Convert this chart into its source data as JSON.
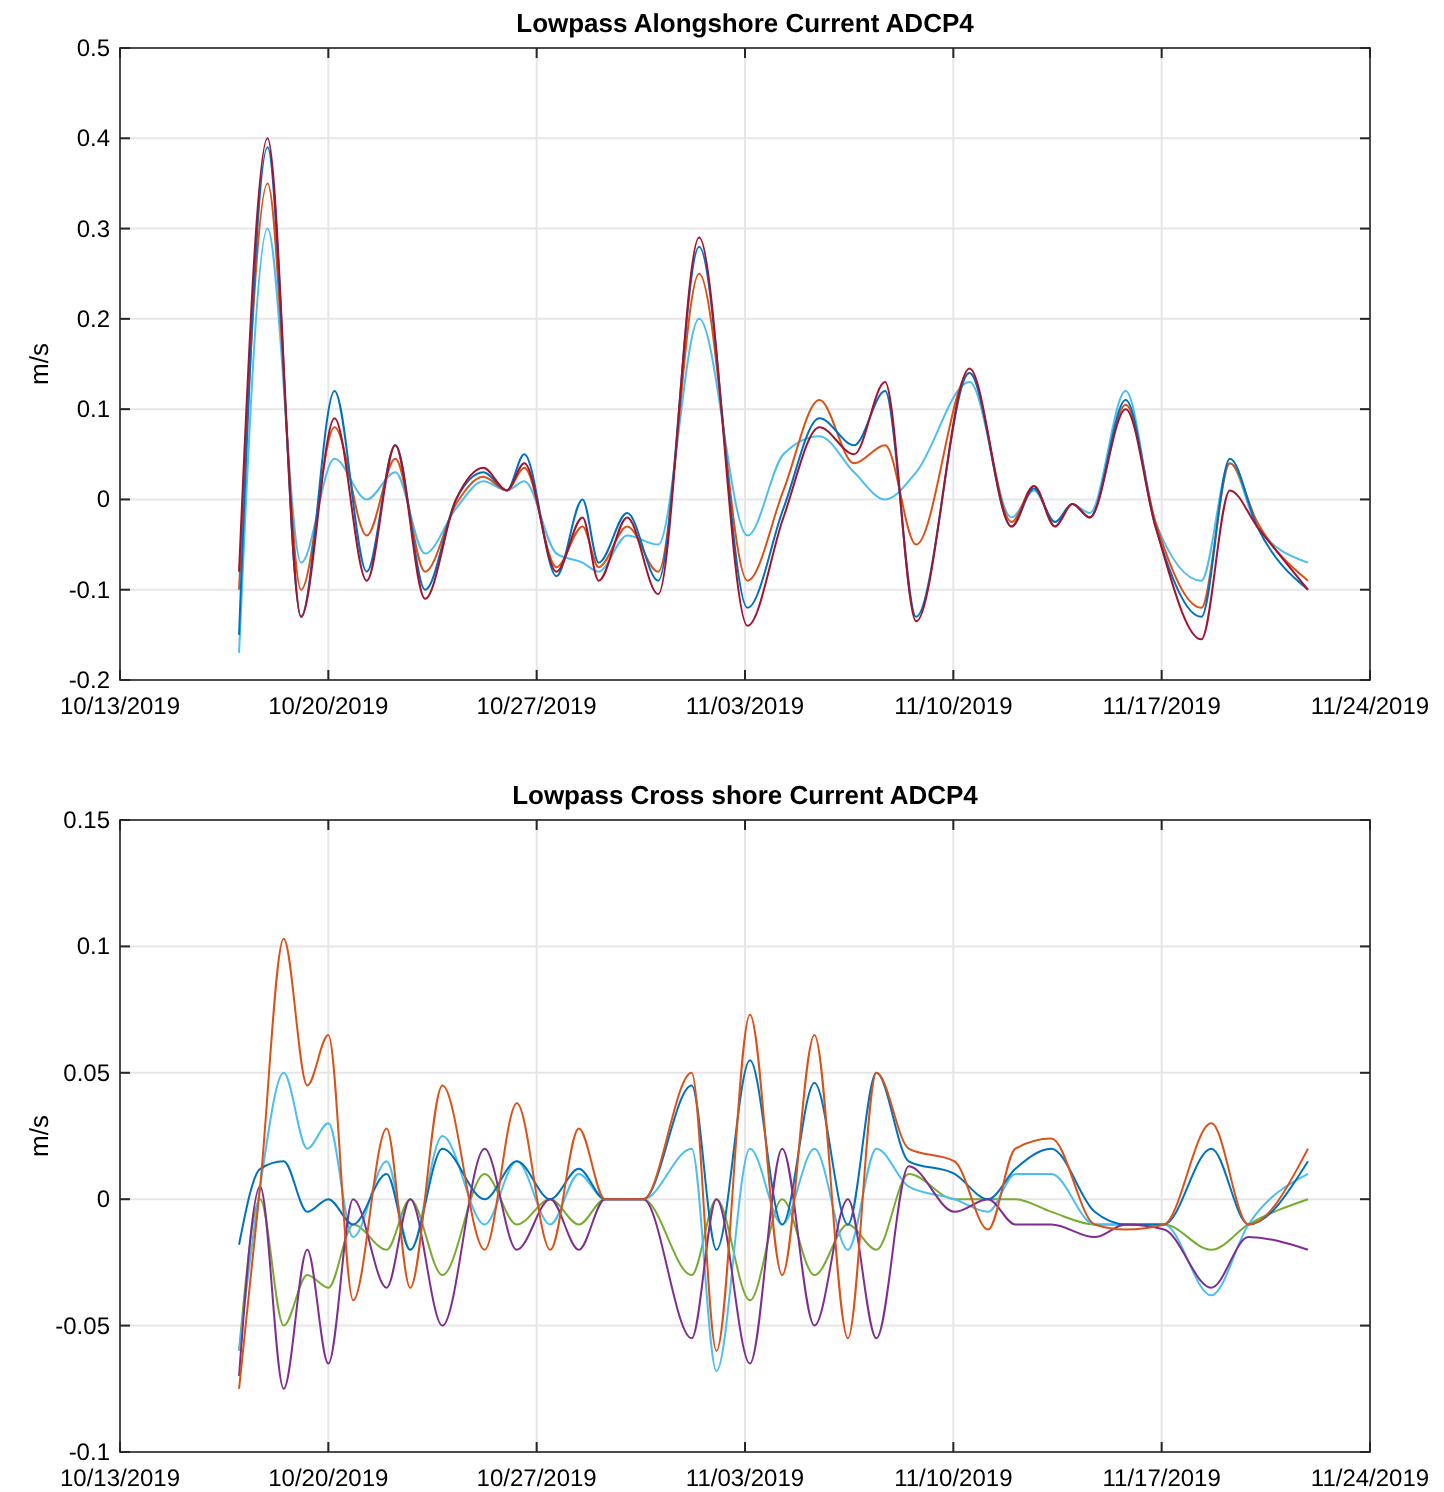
{
  "chart_data": [
    {
      "type": "line",
      "title": "Lowpass Alongshore Current ADCP4",
      "ylabel": "m/s",
      "grid": true,
      "line_style": "solid",
      "x": [
        "2019-10-17T00:00",
        "2019-10-17T23:00",
        "2019-10-19T02:00",
        "2019-10-20T05:00",
        "2019-10-21T07:00",
        "2019-10-22T06:00",
        "2019-10-23T06:00",
        "2019-10-24T07:00",
        "2019-10-25T05:00",
        "2019-10-26T00:00",
        "2019-10-26T14:00",
        "2019-10-27T16:00",
        "2019-10-28T13:00",
        "2019-10-29T02:00",
        "2019-10-30T01:00",
        "2019-10-31T02:00",
        "2019-11-01T11:00",
        "2019-11-03T02:00",
        "2019-11-04T07:00",
        "2019-11-05T12:00",
        "2019-11-06T16:00",
        "2019-11-07T17:00",
        "2019-11-08T18:00",
        "2019-11-10T13:00",
        "2019-11-11T23:00",
        "2019-11-12T17:00",
        "2019-11-13T10:00",
        "2019-11-14T00:00",
        "2019-11-14T14:00",
        "2019-11-15T19:00",
        "2019-11-16T19:00",
        "2019-11-18T08:00",
        "2019-11-19T07:00",
        "2019-11-20T05:00",
        "2019-11-21T22:00"
      ],
      "xlim": [
        "2019-10-13",
        "2019-11-24"
      ],
      "xticks": [
        {
          "value": "2019-10-13",
          "label": "10/13/2019"
        },
        {
          "value": "2019-10-20",
          "label": "10/20/2019"
        },
        {
          "value": "2019-10-27",
          "label": "10/27/2019"
        },
        {
          "value": "2019-11-03",
          "label": "11/03/2019"
        },
        {
          "value": "2019-11-10",
          "label": "11/10/2019"
        },
        {
          "value": "2019-11-17",
          "label": "11/17/2019"
        },
        {
          "value": "2019-11-24",
          "label": "11/24/2019"
        }
      ],
      "ylim": [
        -0.2,
        0.5
      ],
      "yticks": [
        -0.2,
        -0.1,
        0,
        0.1,
        0.2,
        0.3,
        0.4,
        0.5
      ],
      "series": [
        {
          "color": "#4dbeee",
          "values": [
            -0.17,
            0.3,
            -0.07,
            0.045,
            0.0,
            0.03,
            -0.06,
            -0.01,
            0.02,
            0.01,
            0.02,
            -0.06,
            -0.07,
            -0.08,
            -0.04,
            -0.05,
            0.2,
            -0.04,
            0.05,
            0.07,
            0.03,
            0.0,
            0.03,
            0.13,
            -0.02,
            0.01,
            -0.025,
            -0.005,
            -0.015,
            0.12,
            -0.025,
            -0.09,
            0.04,
            -0.03,
            -0.07
          ]
        },
        {
          "color": "#d95319",
          "values": [
            -0.1,
            0.35,
            -0.1,
            0.08,
            -0.04,
            0.045,
            -0.08,
            -0.005,
            0.025,
            0.01,
            0.035,
            -0.075,
            -0.03,
            -0.075,
            -0.03,
            -0.08,
            0.25,
            -0.09,
            0.01,
            0.11,
            0.04,
            0.06,
            -0.05,
            0.14,
            -0.025,
            0.015,
            -0.03,
            -0.005,
            -0.02,
            0.105,
            -0.025,
            -0.12,
            0.04,
            -0.025,
            -0.09
          ]
        },
        {
          "color": "#0072bd",
          "values": [
            -0.15,
            0.39,
            -0.13,
            0.12,
            -0.08,
            0.06,
            -0.1,
            0.0,
            0.03,
            0.01,
            0.05,
            -0.085,
            0.0,
            -0.07,
            -0.015,
            -0.09,
            0.28,
            -0.12,
            -0.01,
            0.09,
            0.06,
            0.12,
            -0.13,
            0.14,
            -0.03,
            0.012,
            -0.025,
            -0.005,
            -0.02,
            0.11,
            -0.03,
            -0.13,
            0.045,
            -0.03,
            -0.1
          ]
        },
        {
          "color": "#a2142f",
          "values": [
            -0.08,
            0.4,
            -0.13,
            0.09,
            -0.09,
            0.06,
            -0.11,
            0.0,
            0.035,
            0.01,
            0.04,
            -0.08,
            -0.02,
            -0.09,
            -0.02,
            -0.105,
            0.29,
            -0.14,
            -0.02,
            0.08,
            0.05,
            0.13,
            -0.135,
            0.145,
            -0.03,
            0.015,
            -0.03,
            -0.005,
            -0.02,
            0.1,
            -0.03,
            -0.155,
            0.01,
            -0.03,
            -0.1
          ]
        }
      ]
    },
    {
      "type": "line",
      "title": "Lowpass Cross shore Current ADCP4",
      "ylabel": "m/s",
      "grid": true,
      "line_style": "solid",
      "x": [
        "2019-10-17T00:00",
        "2019-10-17T17:00",
        "2019-10-18T12:00",
        "2019-10-19T07:00",
        "2019-10-20T00:00",
        "2019-10-20T20:00",
        "2019-10-21T23:00",
        "2019-10-22T18:00",
        "2019-10-23T20:00",
        "2019-10-25T06:00",
        "2019-10-26T08:00",
        "2019-10-27T11:00",
        "2019-10-28T10:00",
        "2019-10-29T07:00",
        "2019-10-30T14:00",
        "2019-11-01T05:00",
        "2019-11-02T01:00",
        "2019-11-03T04:00",
        "2019-11-04T06:00",
        "2019-11-05T08:00",
        "2019-11-06T11:00",
        "2019-11-07T10:00",
        "2019-11-08T12:00",
        "2019-11-10T01:00",
        "2019-11-11T04:00",
        "2019-11-12T02:00",
        "2019-11-13T07:00",
        "2019-11-14T18:00",
        "2019-11-15T19:00",
        "2019-11-17T02:00",
        "2019-11-18T16:00",
        "2019-11-19T22:00",
        "2019-11-21T22:00"
      ],
      "xlim": [
        "2019-10-13",
        "2019-11-24"
      ],
      "xticks": [
        {
          "value": "2019-10-13",
          "label": "10/13/2019"
        },
        {
          "value": "2019-10-20",
          "label": "10/20/2019"
        },
        {
          "value": "2019-10-27",
          "label": "10/27/2019"
        },
        {
          "value": "2019-11-03",
          "label": "11/03/2019"
        },
        {
          "value": "2019-11-10",
          "label": "11/10/2019"
        },
        {
          "value": "2019-11-17",
          "label": "11/17/2019"
        },
        {
          "value": "2019-11-24",
          "label": "11/24/2019"
        }
      ],
      "ylim": [
        -0.1,
        0.15
      ],
      "yticks": [
        -0.1,
        -0.05,
        0,
        0.05,
        0.1,
        0.15
      ],
      "series": [
        {
          "color": "#77ac30",
          "values": [
            -0.06,
            0.0,
            -0.05,
            -0.03,
            -0.035,
            -0.01,
            -0.02,
            0.0,
            -0.03,
            0.01,
            -0.01,
            0.0,
            -0.01,
            0.0,
            0.0,
            -0.03,
            0.0,
            -0.04,
            0.0,
            -0.03,
            -0.01,
            -0.02,
            0.01,
            0.0,
            0.0,
            0.0,
            -0.005,
            -0.01,
            -0.01,
            -0.01,
            -0.02,
            -0.01,
            0.0
          ]
        },
        {
          "color": "#4dbeee",
          "values": [
            -0.06,
            0.005,
            0.05,
            0.02,
            0.03,
            -0.015,
            0.015,
            -0.02,
            0.025,
            -0.01,
            0.015,
            -0.01,
            0.01,
            0.0,
            0.0,
            0.02,
            -0.068,
            0.02,
            -0.01,
            0.02,
            -0.02,
            0.02,
            0.005,
            0.0,
            -0.005,
            0.01,
            0.01,
            -0.01,
            -0.01,
            -0.01,
            -0.038,
            -0.01,
            0.01
          ]
        },
        {
          "color": "#0072bd",
          "values": [
            -0.018,
            0.012,
            0.015,
            -0.005,
            0.0,
            -0.01,
            0.01,
            -0.02,
            0.02,
            0.0,
            0.015,
            0.0,
            0.012,
            0.0,
            0.0,
            0.045,
            -0.02,
            0.055,
            -0.01,
            0.046,
            -0.01,
            0.05,
            0.015,
            0.01,
            0.0,
            0.012,
            0.02,
            -0.005,
            -0.01,
            -0.01,
            0.02,
            -0.01,
            0.015
          ]
        },
        {
          "color": "#7e2f8e",
          "values": [
            -0.07,
            0.005,
            -0.075,
            -0.02,
            -0.065,
            0.0,
            -0.035,
            0.0,
            -0.05,
            0.02,
            -0.02,
            0.0,
            -0.02,
            0.0,
            0.0,
            -0.055,
            0.0,
            -0.065,
            0.02,
            -0.05,
            0.0,
            -0.055,
            0.013,
            -0.005,
            0.0,
            -0.01,
            -0.01,
            -0.015,
            -0.01,
            -0.012,
            -0.035,
            -0.015,
            -0.02
          ]
        },
        {
          "color": "#d95319",
          "values": [
            -0.075,
            0.005,
            0.103,
            0.045,
            0.065,
            -0.04,
            0.028,
            -0.035,
            0.045,
            -0.02,
            0.038,
            -0.02,
            0.028,
            0.0,
            0.0,
            0.05,
            -0.06,
            0.073,
            -0.03,
            0.065,
            -0.055,
            0.05,
            0.02,
            0.015,
            -0.012,
            0.02,
            0.024,
            -0.01,
            -0.012,
            -0.01,
            0.03,
            -0.01,
            0.02
          ]
        }
      ]
    }
  ]
}
